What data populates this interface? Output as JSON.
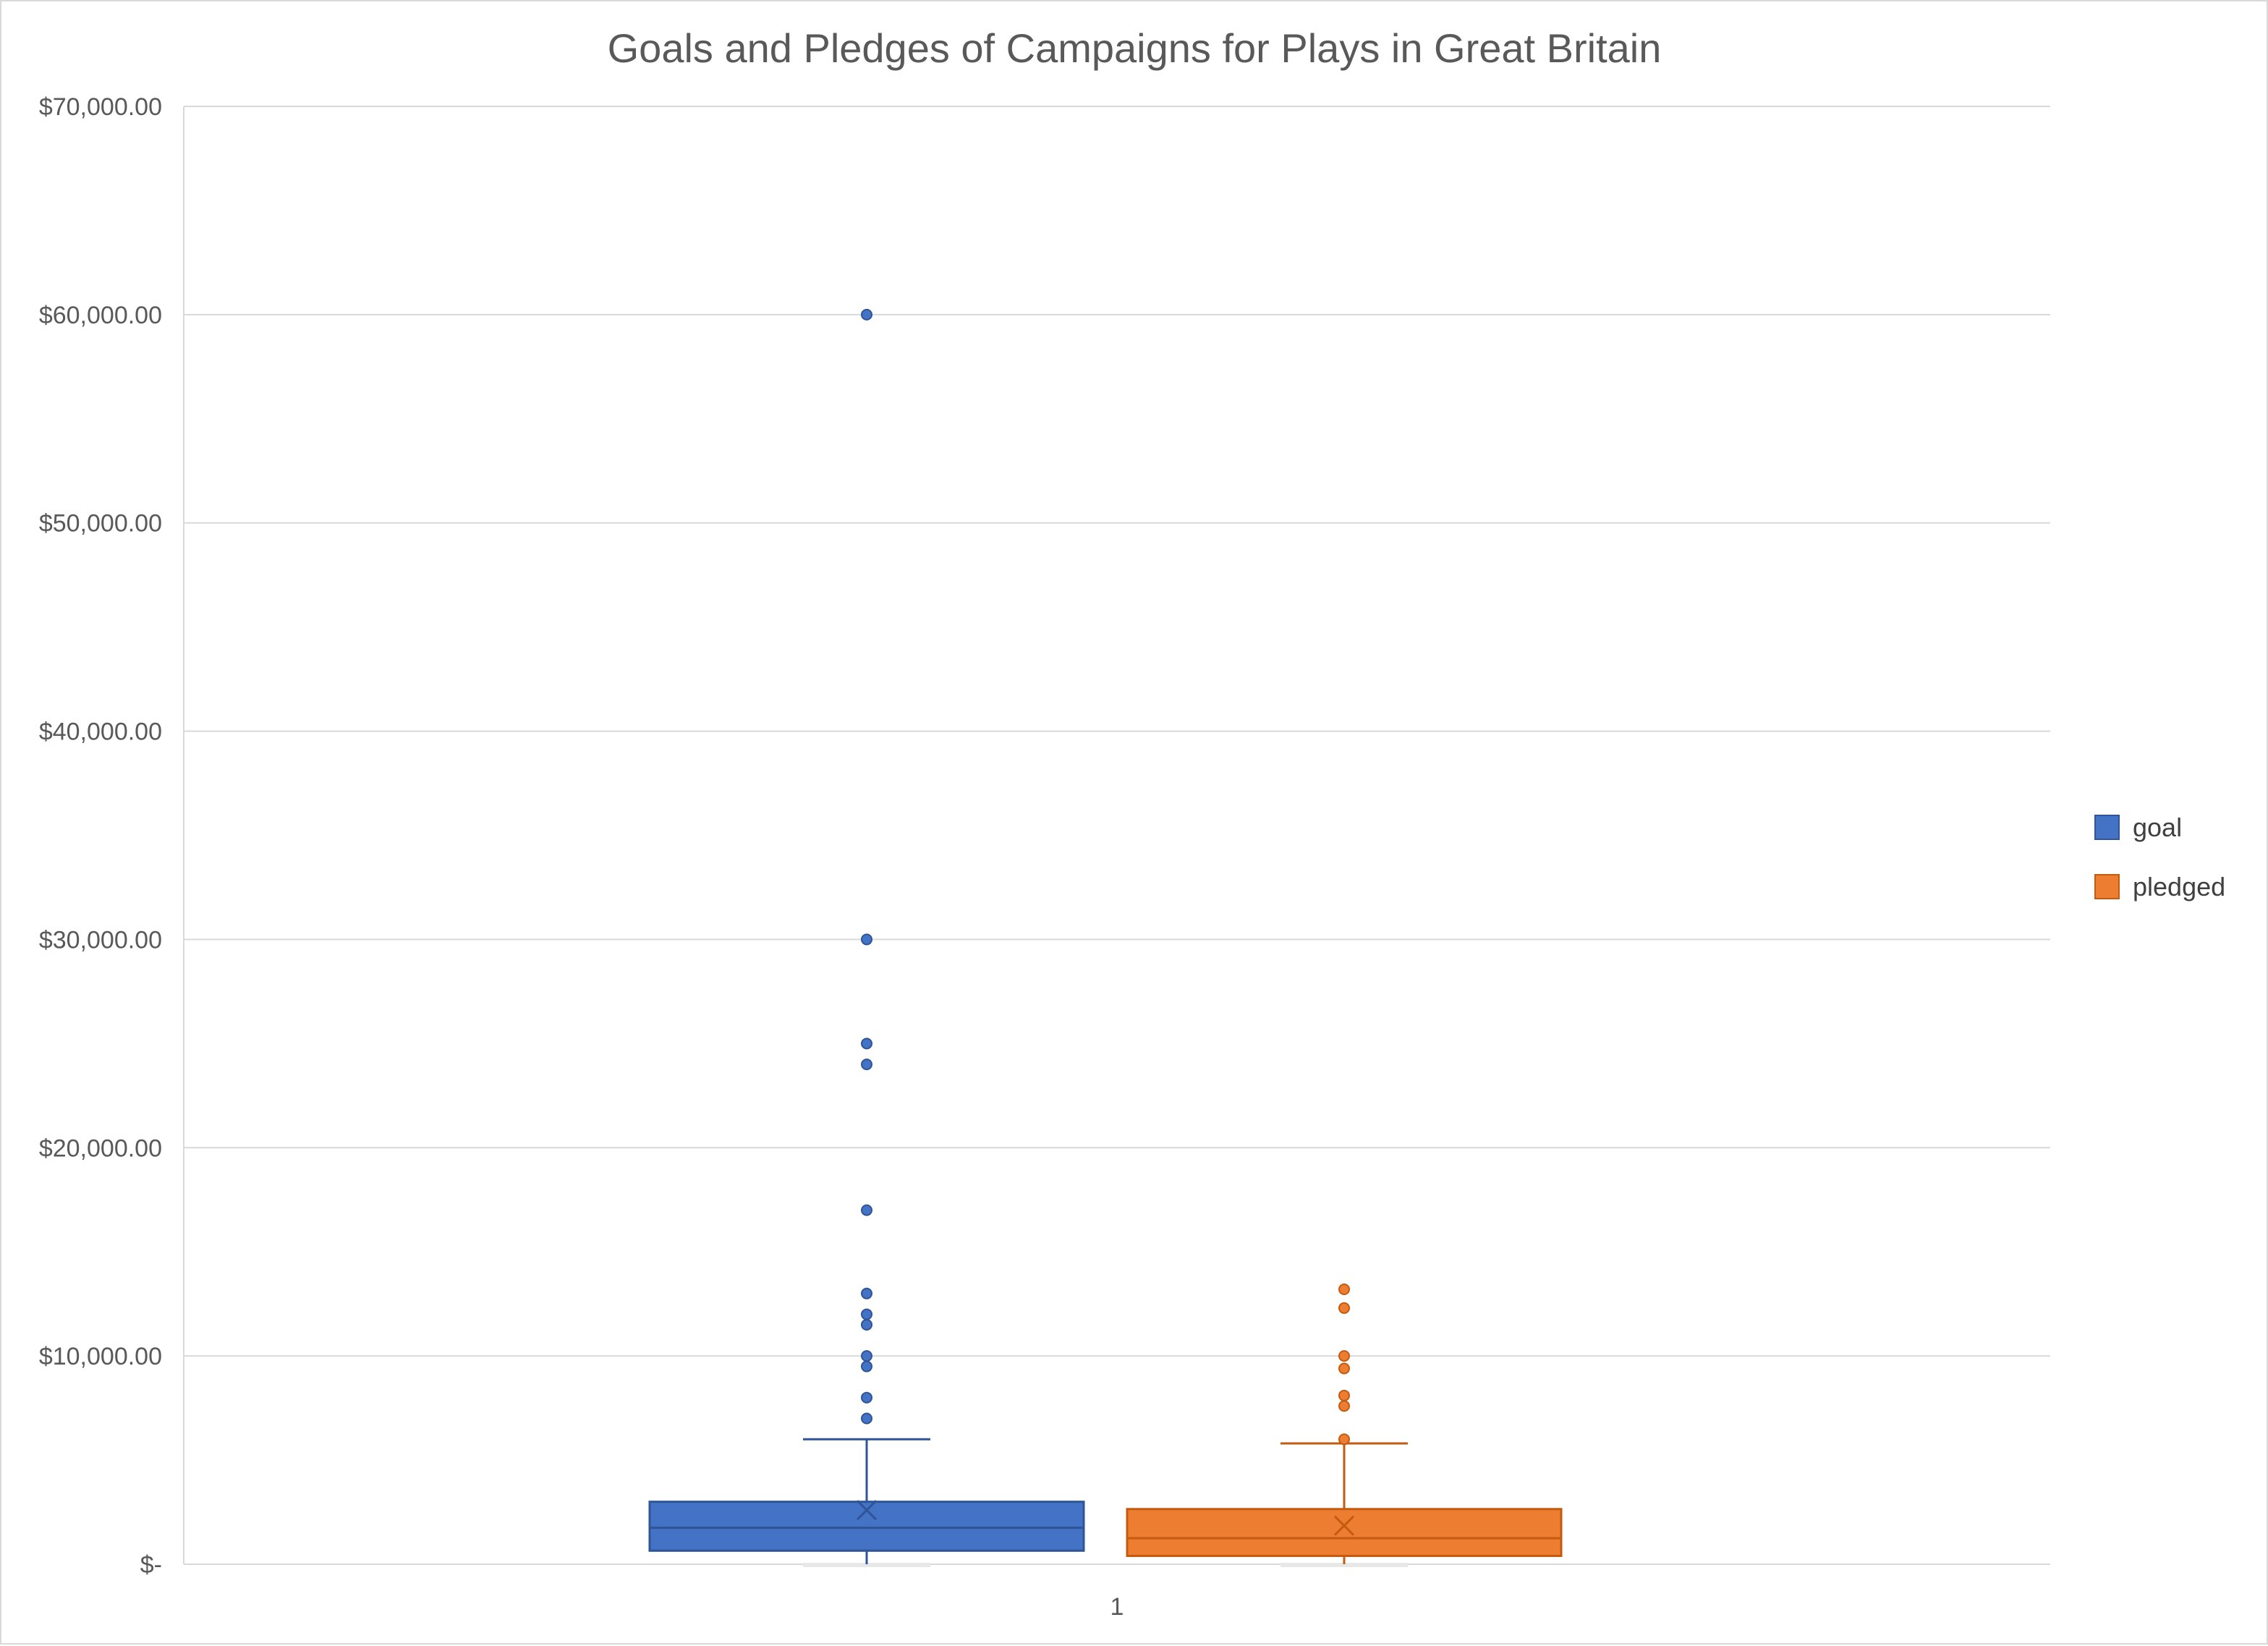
{
  "chart_data": {
    "type": "box",
    "title": "Goals and Pledges of Campaigns for Plays in Great Britain",
    "xlabel": "",
    "ylabel": "",
    "categories": [
      "1"
    ],
    "ylim": [
      0,
      70000
    ],
    "y_ticks": [
      0,
      10000,
      20000,
      30000,
      40000,
      50000,
      60000,
      70000
    ],
    "y_tick_labels": [
      "$-",
      "$10,000.00",
      "$20,000.00",
      "$30,000.00",
      "$40,000.00",
      "$50,000.00",
      "$60,000.00",
      "$70,000.00"
    ],
    "grid": true,
    "legend_position": "right",
    "series": [
      {
        "name": "goal",
        "color": "#4472c4",
        "border": "#2f5597",
        "min": 0,
        "q1": 650,
        "median": 1750,
        "q3": 3000,
        "whisker_high": 6000,
        "mean": 2600,
        "outliers": [
          7000,
          8000,
          9500,
          10000,
          11500,
          12000,
          13000,
          17000,
          24000,
          25000,
          30000,
          60000
        ]
      },
      {
        "name": "pledged",
        "color": "#ed7d31",
        "border": "#c55a11",
        "min": 0,
        "q1": 400,
        "median": 1250,
        "q3": 2650,
        "whisker_high": 5800,
        "mean": 1850,
        "outliers": [
          6000,
          7600,
          8100,
          9400,
          10000,
          12300,
          13200
        ]
      }
    ]
  }
}
